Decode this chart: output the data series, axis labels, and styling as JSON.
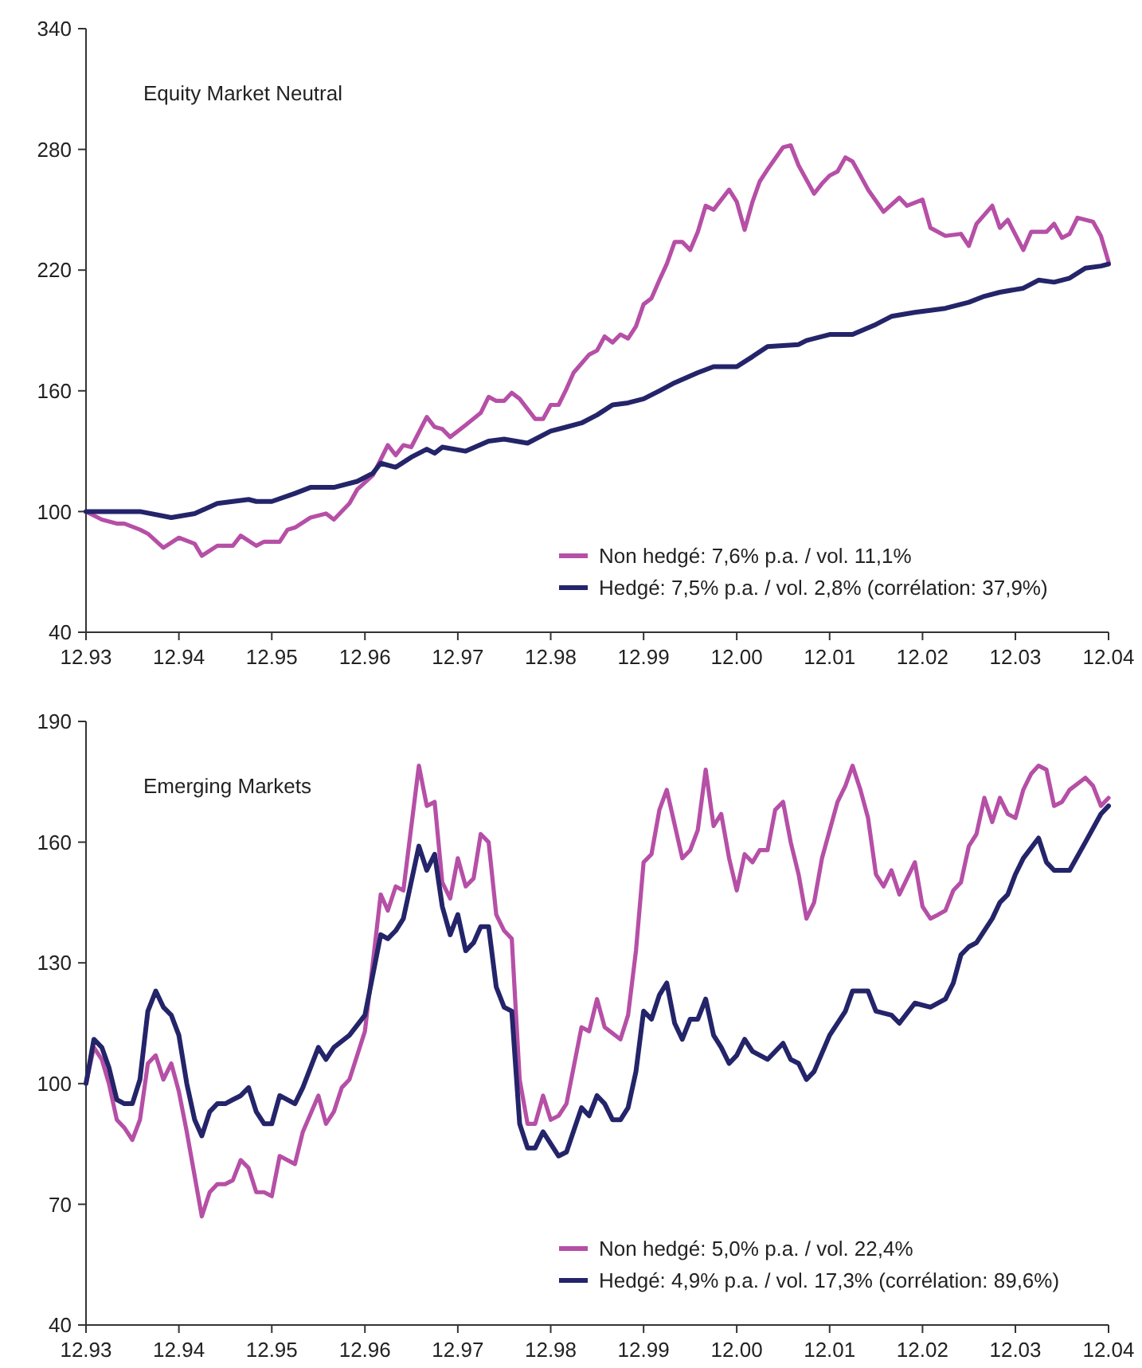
{
  "chart_data": [
    {
      "type": "line",
      "title": "Equity Market Neutral",
      "legend": "bottom right",
      "xlim": [
        "1993-12",
        "2004-12"
      ],
      "xticks": [
        {
          "value": "1993-12",
          "label": "12.93"
        },
        {
          "value": "1994-12",
          "label": "12.94"
        },
        {
          "value": "1995-12",
          "label": "12.95"
        },
        {
          "value": "1996-12",
          "label": "12.96"
        },
        {
          "value": "1997-12",
          "label": "12.97"
        },
        {
          "value": "1998-12",
          "label": "12.98"
        },
        {
          "value": "1999-12",
          "label": "12.99"
        },
        {
          "value": "2000-12",
          "label": "12.00"
        },
        {
          "value": "2001-12",
          "label": "12.01"
        },
        {
          "value": "2002-12",
          "label": "12.02"
        },
        {
          "value": "2003-12",
          "label": "12.03"
        },
        {
          "value": "2004-12",
          "label": "12.04"
        }
      ],
      "ylim": [
        40,
        340
      ],
      "yticks": [
        40,
        100,
        160,
        220,
        280,
        340
      ],
      "series": [
        {
          "name": "Non hedgé: 7,6% p.a. / vol. 11,1%",
          "color": "#b64fa6",
          "x": [
            "1993-12",
            "1994-02",
            "1994-04",
            "1994-05",
            "1994-07",
            "1994-08",
            "1994-10",
            "1994-12",
            "1995-02",
            "1995-03",
            "1995-05",
            "1995-07",
            "1995-08",
            "1995-10",
            "1995-11",
            "1996-01",
            "1996-02",
            "1996-03",
            "1996-05",
            "1996-07",
            "1996-08",
            "1996-10",
            "1996-11",
            "1997-01",
            "1997-03",
            "1997-04",
            "1997-05",
            "1997-06",
            "1997-08",
            "1997-09",
            "1997-10",
            "1997-11",
            "1998-01",
            "1998-03",
            "1998-04",
            "1998-05",
            "1998-06",
            "1998-07",
            "1998-08",
            "1998-10",
            "1998-11",
            "1998-12",
            "1999-01",
            "1999-02",
            "1999-03",
            "1999-05",
            "1999-06",
            "1999-07",
            "1999-08",
            "1999-09",
            "1999-10",
            "1999-11",
            "1999-12",
            "2000-01",
            "2000-02",
            "2000-03",
            "2000-04",
            "2000-05",
            "2000-06",
            "2000-07",
            "2000-08",
            "2000-09",
            "2000-11",
            "2000-12",
            "2001-01",
            "2001-02",
            "2001-03",
            "2001-04",
            "2001-06",
            "2001-07",
            "2001-08",
            "2001-10",
            "2001-11",
            "2001-12",
            "2002-01",
            "2002-02",
            "2002-03",
            "2002-04",
            "2002-05",
            "2002-07",
            "2002-09",
            "2002-10",
            "2002-12",
            "2003-01",
            "2003-03",
            "2003-05",
            "2003-06",
            "2003-07",
            "2003-09",
            "2003-10",
            "2003-11",
            "2004-01",
            "2004-02",
            "2004-04",
            "2004-05",
            "2004-06",
            "2004-07",
            "2004-08",
            "2004-10",
            "2004-11",
            "2004-12"
          ],
          "values": [
            100,
            96,
            94,
            94,
            91,
            89,
            82,
            87,
            84,
            78,
            83,
            83,
            88,
            83,
            85,
            85,
            91,
            92,
            97,
            99,
            96,
            104,
            111,
            118,
            133,
            128,
            133,
            132,
            147,
            142,
            141,
            137,
            143,
            149,
            157,
            155,
            155,
            159,
            156,
            146,
            146,
            153,
            153,
            161,
            169,
            178,
            180,
            187,
            184,
            188,
            186,
            192,
            203,
            206,
            215,
            223,
            234,
            234,
            230,
            239,
            252,
            250,
            260,
            254,
            240,
            254,
            264,
            270,
            281,
            282,
            272,
            258,
            263,
            267,
            269,
            276,
            274,
            267,
            260,
            249,
            256,
            252,
            255,
            241,
            237,
            238,
            232,
            243,
            252,
            241,
            245,
            230,
            239,
            239,
            243,
            236,
            238,
            246,
            244,
            237,
            224
          ]
        },
        {
          "name": "Hedgé: 7,5% p.a. / vol. 2,8%  (corrélation: 37,9%)",
          "color": "#24246a",
          "x": [
            "1993-12",
            "1994-03",
            "1994-07",
            "1994-11",
            "1995-02",
            "1995-05",
            "1995-07",
            "1995-09",
            "1995-10",
            "1995-12",
            "1996-03",
            "1996-05",
            "1996-08",
            "1996-11",
            "1997-01",
            "1997-02",
            "1997-04",
            "1997-06",
            "1997-08",
            "1997-09",
            "1997-10",
            "1998-01",
            "1998-04",
            "1998-06",
            "1998-09",
            "1998-12",
            "1999-02",
            "1999-04",
            "1999-06",
            "1999-08",
            "1999-10",
            "1999-12",
            "2000-02",
            "2000-04",
            "2000-07",
            "2000-09",
            "2000-12",
            "2001-02",
            "2001-04",
            "2001-08",
            "2001-09",
            "2001-12",
            "2002-03",
            "2002-06",
            "2002-08",
            "2002-11",
            "2003-01",
            "2003-03",
            "2003-05",
            "2003-06",
            "2003-08",
            "2003-10",
            "2004-01",
            "2004-03",
            "2004-05",
            "2004-07",
            "2004-09",
            "2004-11",
            "2004-12"
          ],
          "values": [
            100,
            100,
            100,
            97,
            99,
            104,
            105,
            106,
            105,
            105,
            109,
            112,
            112,
            115,
            119,
            124,
            122,
            127,
            131,
            129,
            132,
            130,
            135,
            136,
            134,
            140,
            142,
            144,
            148,
            153,
            154,
            156,
            160,
            164,
            169,
            172,
            172,
            177,
            182,
            183,
            185,
            188,
            188,
            193,
            197,
            199,
            200,
            201,
            203,
            204,
            207,
            209,
            211,
            215,
            214,
            216,
            221,
            222,
            223
          ]
        }
      ]
    },
    {
      "type": "line",
      "title": "Emerging Markets",
      "legend": "bottom right",
      "xlim": [
        "1993-12",
        "2004-12"
      ],
      "xticks": [
        {
          "value": "1993-12",
          "label": "12.93"
        },
        {
          "value": "1994-12",
          "label": "12.94"
        },
        {
          "value": "1995-12",
          "label": "12.95"
        },
        {
          "value": "1996-12",
          "label": "12.96"
        },
        {
          "value": "1997-12",
          "label": "12.97"
        },
        {
          "value": "1998-12",
          "label": "12.98"
        },
        {
          "value": "1999-12",
          "label": "12.99"
        },
        {
          "value": "2000-12",
          "label": "12.00"
        },
        {
          "value": "2001-12",
          "label": "12.01"
        },
        {
          "value": "2002-12",
          "label": "12.02"
        },
        {
          "value": "2003-12",
          "label": "12.03"
        },
        {
          "value": "2004-12",
          "label": "12.04"
        }
      ],
      "ylim": [
        40,
        190
      ],
      "yticks": [
        40,
        70,
        100,
        130,
        160,
        190
      ],
      "series": [
        {
          "name": "Non hedgé: 5,0% p.a. / vol. 22,4%",
          "color": "#b64fa6",
          "x": [
            "1993-12",
            "1994-01",
            "1994-02",
            "1994-03",
            "1994-04",
            "1994-05",
            "1994-06",
            "1994-07",
            "1994-08",
            "1994-09",
            "1994-10",
            "1994-11",
            "1994-12",
            "1995-01",
            "1995-02",
            "1995-03",
            "1995-04",
            "1995-05",
            "1995-06",
            "1995-07",
            "1995-08",
            "1995-09",
            "1995-10",
            "1995-11",
            "1995-12",
            "1996-01",
            "1996-03",
            "1996-04",
            "1996-06",
            "1996-07",
            "1996-08",
            "1996-09",
            "1996-10",
            "1996-12",
            "1997-02",
            "1997-03",
            "1997-04",
            "1997-05",
            "1997-07",
            "1997-08",
            "1997-09",
            "1997-10",
            "1997-11",
            "1997-12",
            "1998-01",
            "1998-02",
            "1998-03",
            "1998-04",
            "1998-05",
            "1998-06",
            "1998-07",
            "1998-08",
            "1998-09",
            "1998-10",
            "1998-11",
            "1998-12",
            "1999-01",
            "1999-02",
            "1999-03",
            "1999-04",
            "1999-05",
            "1999-06",
            "1999-07",
            "1999-09",
            "1999-10",
            "1999-11",
            "1999-12",
            "2000-01",
            "2000-02",
            "2000-03",
            "2000-05",
            "2000-06",
            "2000-07",
            "2000-08",
            "2000-09",
            "2000-10",
            "2000-11",
            "2000-12",
            "2001-01",
            "2001-02",
            "2001-03",
            "2001-04",
            "2001-05",
            "2001-06",
            "2001-07",
            "2001-08",
            "2001-09",
            "2001-10",
            "2001-11",
            "2002-01",
            "2002-02",
            "2002-03",
            "2002-04",
            "2002-05",
            "2002-06",
            "2002-07",
            "2002-08",
            "2002-09",
            "2002-11",
            "2002-12",
            "2003-01",
            "2003-02",
            "2003-03",
            "2003-04",
            "2003-05",
            "2003-06",
            "2003-07",
            "2003-08",
            "2003-09",
            "2003-10",
            "2003-11",
            "2003-12",
            "2004-01",
            "2004-02",
            "2004-03",
            "2004-04",
            "2004-05",
            "2004-06",
            "2004-07",
            "2004-09",
            "2004-10",
            "2004-11",
            "2004-12"
          ],
          "values": [
            100,
            109,
            106,
            100,
            91,
            89,
            86,
            91,
            105,
            107,
            101,
            105,
            98,
            88,
            77,
            67,
            73,
            75,
            75,
            76,
            81,
            79,
            73,
            73,
            72,
            82,
            80,
            88,
            97,
            90,
            93,
            99,
            101,
            113,
            147,
            143,
            149,
            148,
            179,
            169,
            170,
            150,
            146,
            156,
            149,
            151,
            162,
            160,
            142,
            138,
            136,
            101,
            90,
            90,
            97,
            91,
            92,
            95,
            104,
            114,
            113,
            121,
            114,
            111,
            117,
            133,
            155,
            157,
            168,
            173,
            156,
            158,
            163,
            178,
            164,
            167,
            156,
            148,
            157,
            155,
            158,
            158,
            168,
            170,
            160,
            152,
            141,
            145,
            156,
            170,
            174,
            179,
            173,
            166,
            152,
            149,
            153,
            147,
            155,
            144,
            141,
            142,
            143,
            148,
            150,
            159,
            162,
            171,
            165,
            171,
            167,
            166,
            173,
            177,
            179,
            178,
            169,
            170,
            173,
            176,
            174,
            169,
            171
          ]
        },
        {
          "name": "Hedgé: 4,9% p.a. / vol. 17,3% (corrélation: 89,6%)",
          "color": "#24246a",
          "x": [
            "1993-12",
            "1994-01",
            "1994-02",
            "1994-03",
            "1994-04",
            "1994-05",
            "1994-06",
            "1994-07",
            "1994-08",
            "1994-09",
            "1994-10",
            "1994-11",
            "1994-12",
            "1995-01",
            "1995-02",
            "1995-03",
            "1995-04",
            "1995-05",
            "1995-06",
            "1995-07",
            "1995-08",
            "1995-09",
            "1995-10",
            "1995-11",
            "1995-12",
            "1996-01",
            "1996-03",
            "1996-04",
            "1996-06",
            "1996-07",
            "1996-08",
            "1996-10",
            "1996-12",
            "1997-02",
            "1997-03",
            "1997-04",
            "1997-05",
            "1997-07",
            "1997-08",
            "1997-09",
            "1997-10",
            "1997-11",
            "1997-12",
            "1998-01",
            "1998-02",
            "1998-03",
            "1998-04",
            "1998-05",
            "1998-06",
            "1998-07",
            "1998-08",
            "1998-09",
            "1998-10",
            "1998-11",
            "1999-01",
            "1999-02",
            "1999-04",
            "1999-05",
            "1999-06",
            "1999-07",
            "1999-08",
            "1999-09",
            "1999-10",
            "1999-11",
            "1999-12",
            "2000-01",
            "2000-02",
            "2000-03",
            "2000-04",
            "2000-05",
            "2000-06",
            "2000-07",
            "2000-08",
            "2000-09",
            "2000-10",
            "2000-11",
            "2000-12",
            "2001-01",
            "2001-02",
            "2001-04",
            "2001-06",
            "2001-07",
            "2001-08",
            "2001-09",
            "2001-10",
            "2001-12",
            "2002-02",
            "2002-03",
            "2002-05",
            "2002-06",
            "2002-08",
            "2002-09",
            "2002-11",
            "2003-01",
            "2003-03",
            "2003-04",
            "2003-05",
            "2003-06",
            "2003-07",
            "2003-09",
            "2003-10",
            "2003-11",
            "2003-12",
            "2004-01",
            "2004-03",
            "2004-04",
            "2004-05",
            "2004-06",
            "2004-07",
            "2004-09",
            "2004-11",
            "2004-12"
          ],
          "values": [
            100,
            111,
            109,
            104,
            96,
            95,
            95,
            101,
            118,
            123,
            119,
            117,
            112,
            100,
            91,
            87,
            93,
            95,
            95,
            96,
            97,
            99,
            93,
            90,
            90,
            97,
            95,
            99,
            109,
            106,
            109,
            112,
            117,
            137,
            136,
            138,
            141,
            159,
            153,
            157,
            144,
            137,
            142,
            133,
            135,
            139,
            139,
            124,
            119,
            118,
            90,
            84,
            84,
            88,
            82,
            83,
            94,
            92,
            97,
            95,
            91,
            91,
            94,
            103,
            118,
            116,
            122,
            125,
            115,
            111,
            116,
            116,
            121,
            112,
            109,
            105,
            107,
            111,
            108,
            106,
            110,
            106,
            105,
            101,
            103,
            112,
            118,
            123,
            123,
            118,
            117,
            115,
            120,
            119,
            121,
            125,
            132,
            134,
            135,
            141,
            145,
            147,
            152,
            156,
            161,
            155,
            153,
            153,
            153,
            160,
            167,
            169
          ]
        }
      ]
    }
  ]
}
